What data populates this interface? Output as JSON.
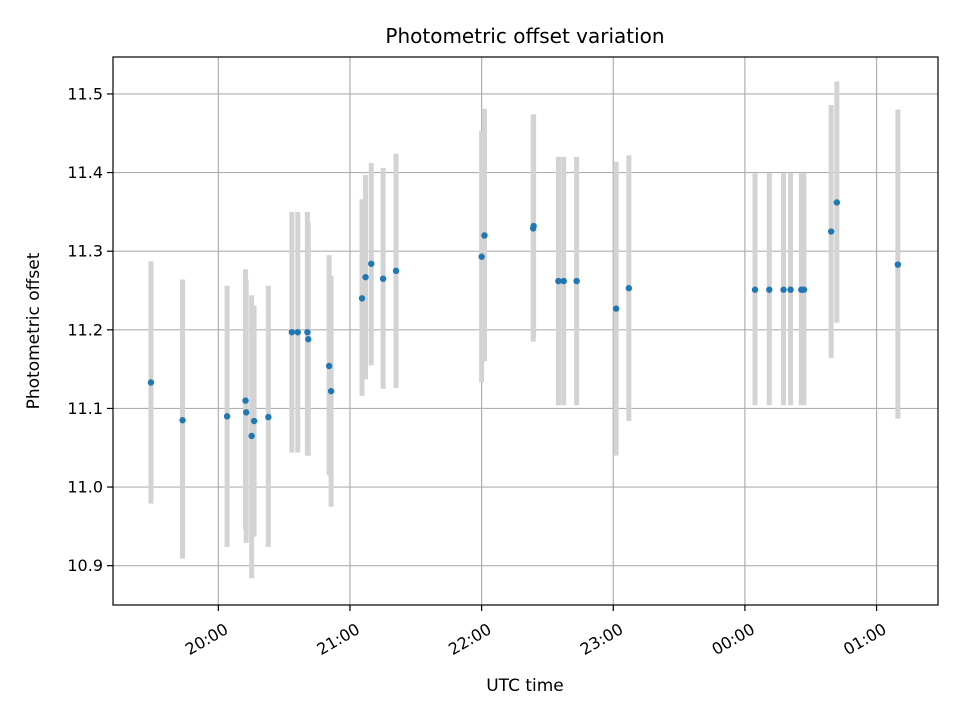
{
  "chart_data": {
    "type": "scatter",
    "title": "Photometric offset variation",
    "xlabel": "UTC time",
    "ylabel": "Photometric offset",
    "grid": true,
    "x_unit": "minutes since 00:00 UTC (next-day hours extend past 1440)",
    "xlim": [
      1152,
      1528
    ],
    "ylim": [
      10.85,
      11.547
    ],
    "x_ticks": [
      {
        "value": 1200,
        "label": "20:00"
      },
      {
        "value": 1260,
        "label": "21:00"
      },
      {
        "value": 1320,
        "label": "22:00"
      },
      {
        "value": 1380,
        "label": "23:00"
      },
      {
        "value": 1440,
        "label": "00:00"
      },
      {
        "value": 1500,
        "label": "01:00"
      }
    ],
    "y_ticks": [
      {
        "value": 10.9,
        "label": "10.9"
      },
      {
        "value": 11.0,
        "label": "11.0"
      },
      {
        "value": 11.1,
        "label": "11.1"
      },
      {
        "value": 11.2,
        "label": "11.2"
      },
      {
        "value": 11.3,
        "label": "11.3"
      },
      {
        "value": 11.4,
        "label": "11.4"
      },
      {
        "value": 11.5,
        "label": "11.5"
      }
    ],
    "point_color": "#1f77b4",
    "errorbar_color": "#d3d3d3",
    "points": [
      {
        "x": 1169.3,
        "y": 11.133,
        "ylo": 10.979,
        "yhi": 11.287
      },
      {
        "x": 1183.7,
        "y": 11.085,
        "ylo": 10.909,
        "yhi": 11.264
      },
      {
        "x": 1204.0,
        "y": 11.09,
        "ylo": 10.924,
        "yhi": 11.256
      },
      {
        "x": 1212.4,
        "y": 11.11,
        "ylo": 10.946,
        "yhi": 11.277
      },
      {
        "x": 1212.7,
        "y": 11.095,
        "ylo": 10.929,
        "yhi": 11.264
      },
      {
        "x": 1215.2,
        "y": 11.065,
        "ylo": 10.884,
        "yhi": 11.244
      },
      {
        "x": 1216.3,
        "y": 11.084,
        "ylo": 10.937,
        "yhi": 11.231
      },
      {
        "x": 1222.8,
        "y": 11.089,
        "ylo": 10.924,
        "yhi": 11.256
      },
      {
        "x": 1233.5,
        "y": 11.197,
        "ylo": 11.044,
        "yhi": 11.35
      },
      {
        "x": 1236.2,
        "y": 11.197,
        "ylo": 11.044,
        "yhi": 11.35
      },
      {
        "x": 1240.6,
        "y": 11.197,
        "ylo": 11.04,
        "yhi": 11.35
      },
      {
        "x": 1241.0,
        "y": 11.188,
        "ylo": 11.04,
        "yhi": 11.337
      },
      {
        "x": 1250.5,
        "y": 11.154,
        "ylo": 11.015,
        "yhi": 11.295
      },
      {
        "x": 1251.4,
        "y": 11.122,
        "ylo": 10.975,
        "yhi": 11.269
      },
      {
        "x": 1265.5,
        "y": 11.24,
        "ylo": 11.116,
        "yhi": 11.366
      },
      {
        "x": 1267.1,
        "y": 11.267,
        "ylo": 11.137,
        "yhi": 11.397
      },
      {
        "x": 1269.7,
        "y": 11.284,
        "ylo": 11.155,
        "yhi": 11.412
      },
      {
        "x": 1275.1,
        "y": 11.265,
        "ylo": 11.125,
        "yhi": 11.406
      },
      {
        "x": 1281.0,
        "y": 11.275,
        "ylo": 11.126,
        "yhi": 11.424
      },
      {
        "x": 1320.0,
        "y": 11.293,
        "ylo": 11.133,
        "yhi": 11.453
      },
      {
        "x": 1321.3,
        "y": 11.32,
        "ylo": 11.16,
        "yhi": 11.481
      },
      {
        "x": 1343.5,
        "y": 11.329,
        "ylo": 11.185,
        "yhi": 11.474
      },
      {
        "x": 1343.7,
        "y": 11.332,
        "ylo": 11.19,
        "yhi": 11.474
      },
      {
        "x": 1355.0,
        "y": 11.262,
        "ylo": 11.104,
        "yhi": 11.42
      },
      {
        "x": 1357.4,
        "y": 11.262,
        "ylo": 11.104,
        "yhi": 11.42
      },
      {
        "x": 1363.3,
        "y": 11.262,
        "ylo": 11.104,
        "yhi": 11.42
      },
      {
        "x": 1381.3,
        "y": 11.227,
        "ylo": 11.04,
        "yhi": 11.414
      },
      {
        "x": 1387.1,
        "y": 11.253,
        "ylo": 11.084,
        "yhi": 11.422
      },
      {
        "x": 1444.6,
        "y": 11.251,
        "ylo": 11.104,
        "yhi": 11.399
      },
      {
        "x": 1451.1,
        "y": 11.251,
        "ylo": 11.104,
        "yhi": 11.399
      },
      {
        "x": 1457.6,
        "y": 11.251,
        "ylo": 11.104,
        "yhi": 11.399
      },
      {
        "x": 1460.8,
        "y": 11.251,
        "ylo": 11.104,
        "yhi": 11.399
      },
      {
        "x": 1465.7,
        "y": 11.251,
        "ylo": 11.104,
        "yhi": 11.399
      },
      {
        "x": 1466.9,
        "y": 11.251,
        "ylo": 11.104,
        "yhi": 11.399
      },
      {
        "x": 1479.3,
        "y": 11.325,
        "ylo": 11.164,
        "yhi": 11.486
      },
      {
        "x": 1481.9,
        "y": 11.362,
        "ylo": 11.209,
        "yhi": 11.516
      },
      {
        "x": 1509.7,
        "y": 11.283,
        "ylo": 11.087,
        "yhi": 11.48
      }
    ]
  }
}
